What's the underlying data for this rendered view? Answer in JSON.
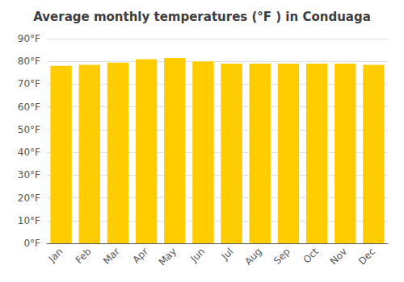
{
  "chart_data": {
    "type": "bar",
    "title": "Average monthly temperatures (°F ) in Conduaga",
    "categories": [
      "Jan",
      "Feb",
      "Mar",
      "Apr",
      "May",
      "Jun",
      "Jul",
      "Aug",
      "Sep",
      "Oct",
      "Nov",
      "Dec"
    ],
    "values": [
      78.0,
      78.5,
      79.5,
      81.0,
      81.5,
      80.0,
      79.0,
      79.0,
      79.0,
      79.0,
      79.0,
      78.5
    ],
    "color": "#FFCC00",
    "ylim": [
      0,
      90
    ],
    "yticks": [
      {
        "value": 0,
        "label": "0°F"
      },
      {
        "value": 10,
        "label": "10°F"
      },
      {
        "value": 20,
        "label": "20°F"
      },
      {
        "value": 30,
        "label": "30°F"
      },
      {
        "value": 40,
        "label": "40°F"
      },
      {
        "value": 50,
        "label": "50°F"
      },
      {
        "value": 60,
        "label": "60°F"
      },
      {
        "value": 70,
        "label": "70°F"
      },
      {
        "value": 80,
        "label": "80°F"
      },
      {
        "value": 90,
        "label": "90°F"
      }
    ],
    "grid": true
  }
}
